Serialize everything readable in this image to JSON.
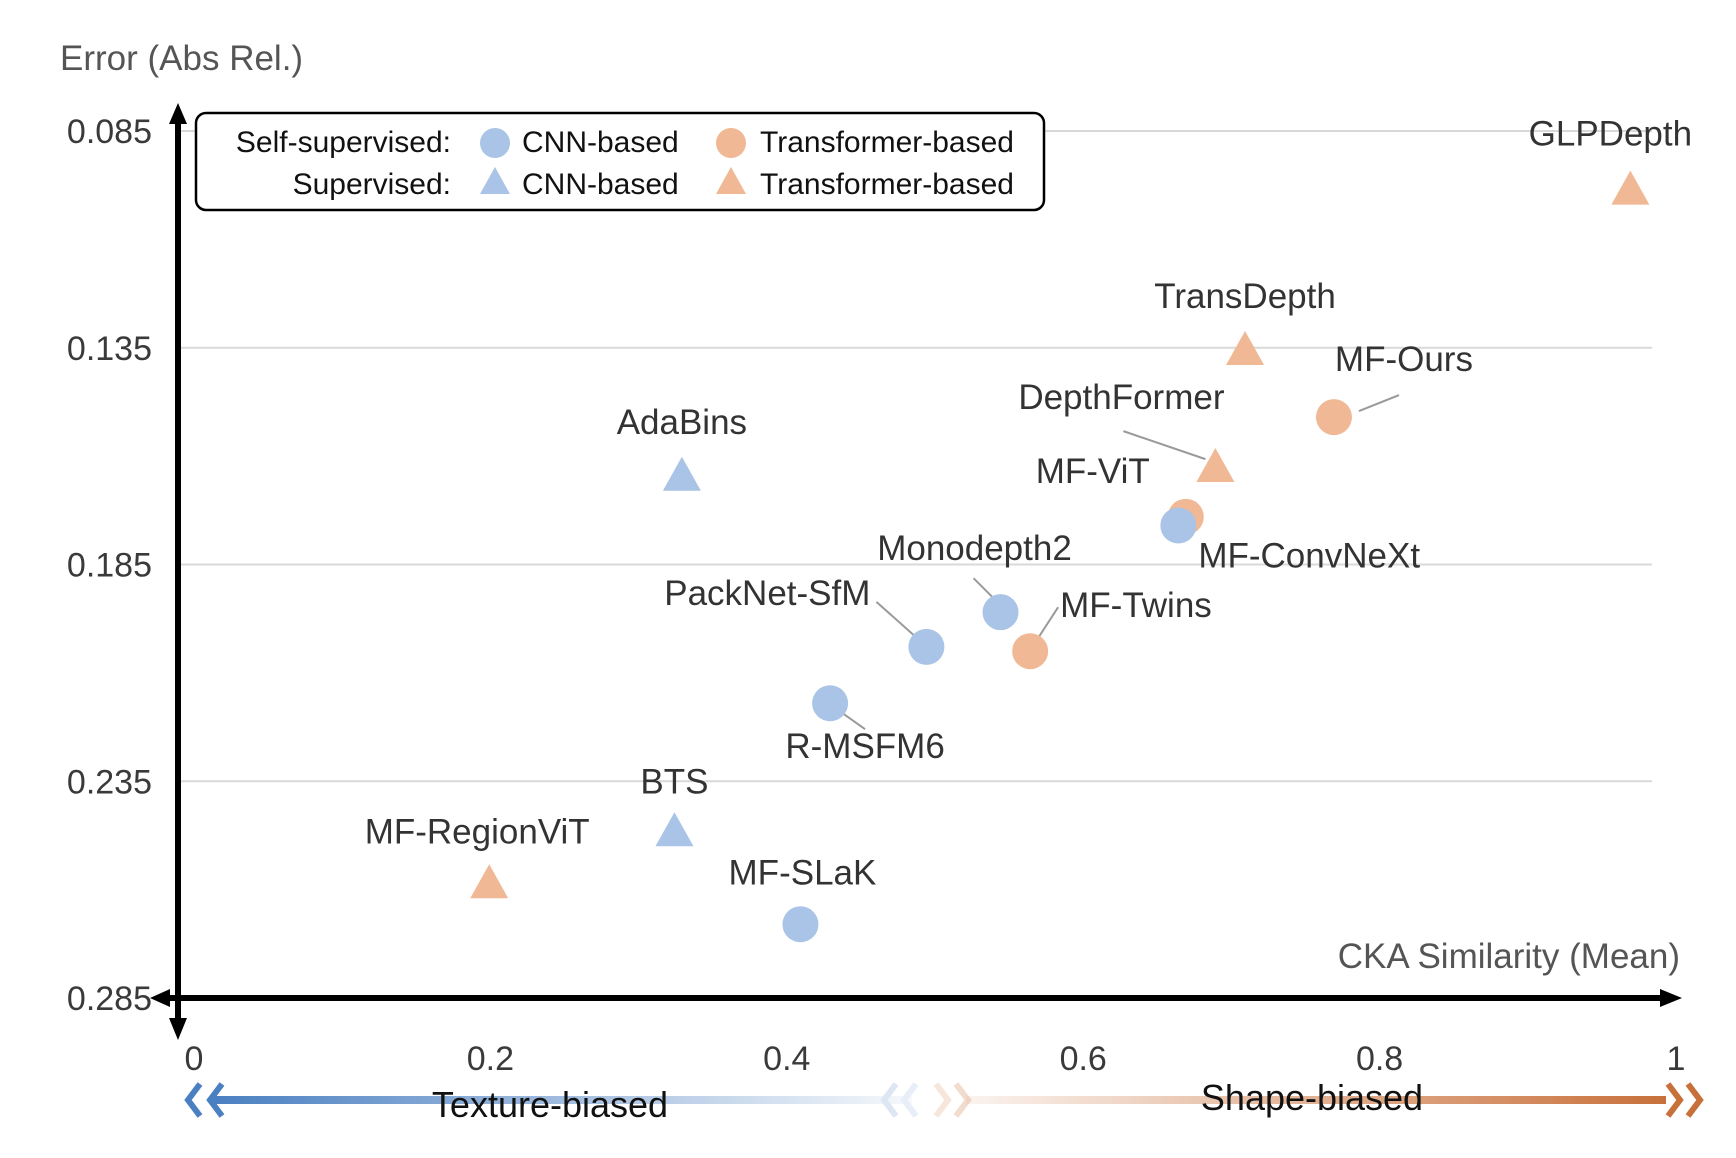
{
  "chart_data": {
    "type": "scatter",
    "xlabel": "CKA Similarity (Mean)",
    "ylabel": "Error (Abs Rel.)",
    "xlim": [
      0,
      1
    ],
    "ylim": [
      0.085,
      0.285
    ],
    "y_inverted": true,
    "xticks": [
      "0",
      "0.2",
      "0.4",
      "0.6",
      "0.8",
      "1"
    ],
    "xtick_values": [
      0,
      0.2,
      0.4,
      0.6,
      0.8,
      1
    ],
    "yticks": [
      "0.085",
      "0.135",
      "0.185",
      "0.235",
      "0.285"
    ],
    "ytick_values": [
      0.085,
      0.135,
      0.185,
      0.235,
      0.285
    ],
    "grid": "horizontal",
    "legend": {
      "placement": "top-left",
      "rows": [
        {
          "label": "Self-supervised:",
          "items": [
            {
              "marker": "circle",
              "color": "#a9c4e6",
              "text": "CNN-based"
            },
            {
              "marker": "circle",
              "color": "#f0b894",
              "text": "Transformer-based"
            }
          ]
        },
        {
          "label": "Supervised:",
          "items": [
            {
              "marker": "triangle",
              "color": "#a9c4e6",
              "text": "CNN-based"
            },
            {
              "marker": "triangle",
              "color": "#f0b894",
              "text": "Transformer-based"
            }
          ]
        }
      ]
    },
    "colors": {
      "cnn": "#a9c4e6",
      "transformer": "#f0b894",
      "grid": "#d9d9d9",
      "texture": "#4a7fc1",
      "shape": "#c8703a"
    },
    "bias_labels": {
      "left": "Texture-biased",
      "right": "Shape-biased"
    },
    "points": [
      {
        "name": "GLPDepth",
        "x": 0.98,
        "y": 0.099,
        "group": "supervised-transformer"
      },
      {
        "name": "TransDepth",
        "x": 0.72,
        "y": 0.136,
        "group": "supervised-transformer"
      },
      {
        "name": "MF-Ours",
        "x": 0.78,
        "y": 0.151,
        "group": "self-transformer"
      },
      {
        "name": "DepthFormer",
        "x": 0.7,
        "y": 0.163,
        "group": "supervised-transformer"
      },
      {
        "name": "AdaBins",
        "x": 0.34,
        "y": 0.165,
        "group": "supervised-cnn"
      },
      {
        "name": "MF-ViT",
        "x": 0.68,
        "y": 0.174,
        "group": "self-transformer"
      },
      {
        "name": "MF-ConvNeXt",
        "x": 0.675,
        "y": 0.176,
        "group": "self-cnn"
      },
      {
        "name": "Monodepth2",
        "x": 0.555,
        "y": 0.196,
        "group": "self-cnn"
      },
      {
        "name": "PackNet-SfM",
        "x": 0.505,
        "y": 0.204,
        "group": "self-cnn"
      },
      {
        "name": "MF-Twins",
        "x": 0.575,
        "y": 0.205,
        "group": "self-transformer"
      },
      {
        "name": "R-MSFM6",
        "x": 0.44,
        "y": 0.217,
        "group": "self-cnn"
      },
      {
        "name": "BTS",
        "x": 0.335,
        "y": 0.247,
        "group": "supervised-cnn"
      },
      {
        "name": "MF-RegionViT",
        "x": 0.21,
        "y": 0.259,
        "group": "supervised-transformer"
      },
      {
        "name": "MF-SLaK",
        "x": 0.42,
        "y": 0.268,
        "group": "self-cnn"
      }
    ]
  }
}
